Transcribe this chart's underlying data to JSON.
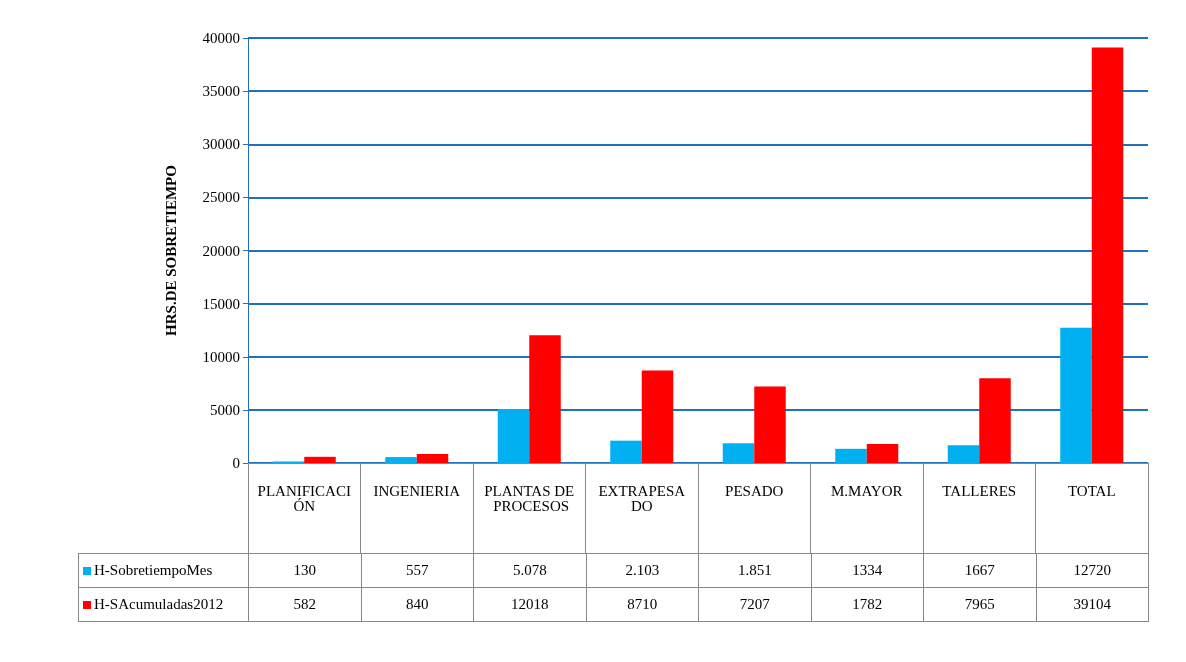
{
  "chart_data": {
    "type": "bar",
    "ylabel": "HRS.DE SOBRETIEMPO",
    "categories": [
      "PLANIFICACIÓN",
      "INGENIERIA",
      "PLANTAS DE PROCESOS",
      "EXTRAPESADO",
      "PESADO",
      "M.MAYOR",
      "TALLERES",
      "TOTAL"
    ],
    "series": [
      {
        "name": "H-SobretiempoMes",
        "color": "#00b0f0",
        "values": [
          130,
          557,
          5078,
          2103,
          1851,
          1334,
          1667,
          12720
        ],
        "value_labels": [
          "130",
          "557",
          "5.078",
          "2.103",
          "1.851",
          "1334",
          "1667",
          "12720"
        ]
      },
      {
        "name": "H-SAcumuladas2012",
        "color": "#ff0000",
        "values": [
          582,
          840,
          12018,
          8710,
          7207,
          1782,
          7965,
          39104
        ],
        "value_labels": [
          "582",
          "840",
          "12018",
          "8710",
          "7207",
          "1782",
          "7965",
          "39104"
        ]
      }
    ],
    "ylim": [
      0,
      40000
    ],
    "yticks": [
      0,
      5000,
      10000,
      15000,
      20000,
      25000,
      30000,
      35000,
      40000
    ],
    "grid": "y",
    "legend": "bottom"
  }
}
